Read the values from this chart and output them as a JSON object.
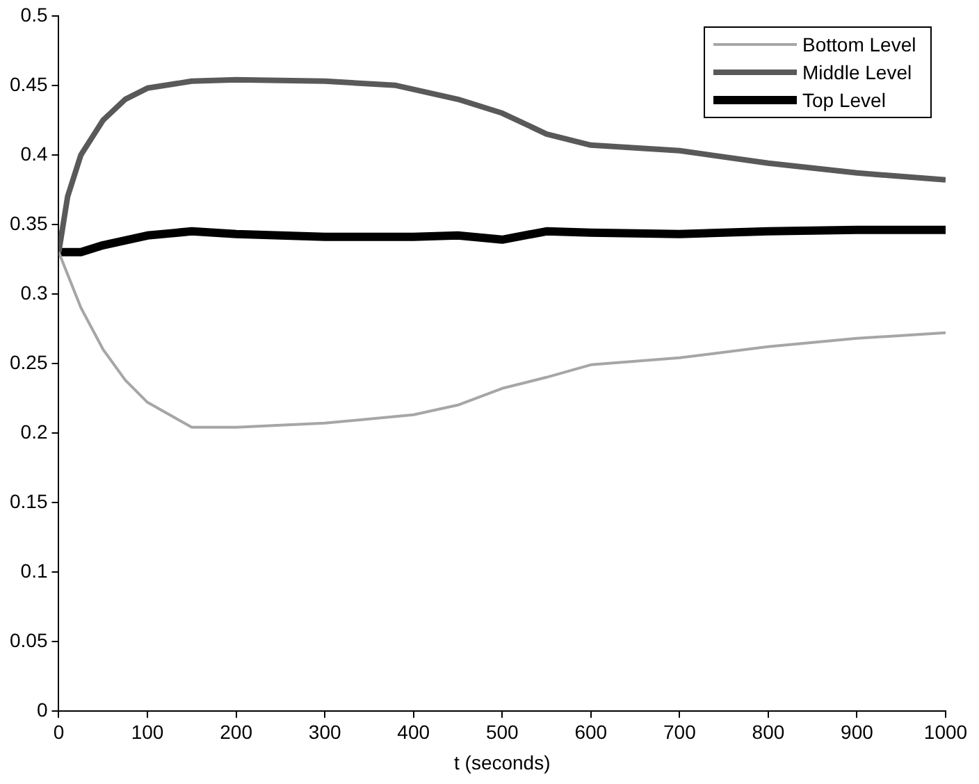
{
  "chart_data": {
    "type": "line",
    "xlabel": "t (seconds)",
    "xlim": [
      0,
      1000
    ],
    "xticks": [
      0,
      100,
      200,
      300,
      400,
      500,
      600,
      700,
      800,
      900,
      1000
    ],
    "ylim": [
      0,
      0.5
    ],
    "yticks": [
      0,
      0.05,
      0.1,
      0.15,
      0.2,
      0.25,
      0.3,
      0.35,
      0.4,
      0.45,
      0.5
    ],
    "grid": false,
    "legend": "top right",
    "marker": "none",
    "line_style": "solid",
    "series": [
      {
        "name": "Bottom Level",
        "color": "#a6a6a6",
        "x": [
          0,
          25,
          50,
          75,
          100,
          150,
          200,
          300,
          400,
          450,
          500,
          550,
          600,
          700,
          800,
          900,
          1000
        ],
        "values": [
          0.33,
          0.29,
          0.26,
          0.238,
          0.222,
          0.204,
          0.204,
          0.207,
          0.213,
          0.22,
          0.232,
          0.24,
          0.249,
          0.254,
          0.262,
          0.268,
          0.272
        ]
      },
      {
        "name": "Middle Level",
        "color": "#595959",
        "x": [
          0,
          10,
          25,
          50,
          75,
          100,
          150,
          200,
          300,
          380,
          450,
          500,
          550,
          600,
          700,
          800,
          900,
          1000
        ],
        "values": [
          0.33,
          0.37,
          0.4,
          0.425,
          0.44,
          0.448,
          0.453,
          0.454,
          0.453,
          0.45,
          0.44,
          0.43,
          0.415,
          0.407,
          0.403,
          0.394,
          0.387,
          0.382
        ]
      },
      {
        "name": "Top Level",
        "color": "#000000",
        "x": [
          0,
          25,
          50,
          100,
          150,
          200,
          300,
          400,
          450,
          500,
          550,
          600,
          700,
          800,
          900,
          1000
        ],
        "values": [
          0.33,
          0.33,
          0.335,
          0.342,
          0.345,
          0.343,
          0.341,
          0.341,
          0.342,
          0.339,
          0.345,
          0.344,
          0.343,
          0.345,
          0.346,
          0.346
        ]
      }
    ]
  }
}
